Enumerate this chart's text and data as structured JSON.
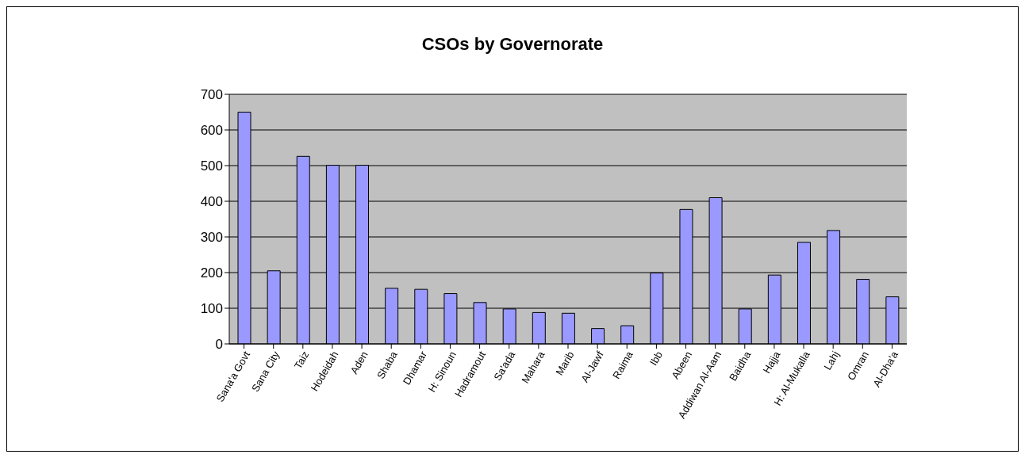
{
  "chart_data": {
    "type": "bar",
    "title": "CSOs by Governorate",
    "categories": [
      "Sana'a Govt",
      "Sana City",
      "Taiz",
      "Hodeidah",
      "Aden",
      "Shaba",
      "Dhamar",
      "H: Sinoun",
      "Hadramout",
      "Sa'ada",
      "Mahara",
      "Marib",
      "Al-Jawf",
      "Raima",
      "Ibb",
      "Abeen",
      "Addiwan Al-Aam",
      "Baidha",
      "Hajja",
      "H: Al-Mukalla",
      "Lahj",
      "Omran",
      "Al-Dha'a"
    ],
    "values": [
      650,
      205,
      526,
      501,
      501,
      156,
      153,
      141,
      116,
      98,
      88,
      86,
      43,
      51,
      199,
      377,
      410,
      98,
      193,
      285,
      318,
      181,
      132
    ],
    "color": "#9999ff",
    "ylim": [
      0,
      700
    ],
    "yticks": [
      0,
      100,
      200,
      300,
      400,
      500,
      600,
      700
    ],
    "grid": "y",
    "legend": false
  }
}
